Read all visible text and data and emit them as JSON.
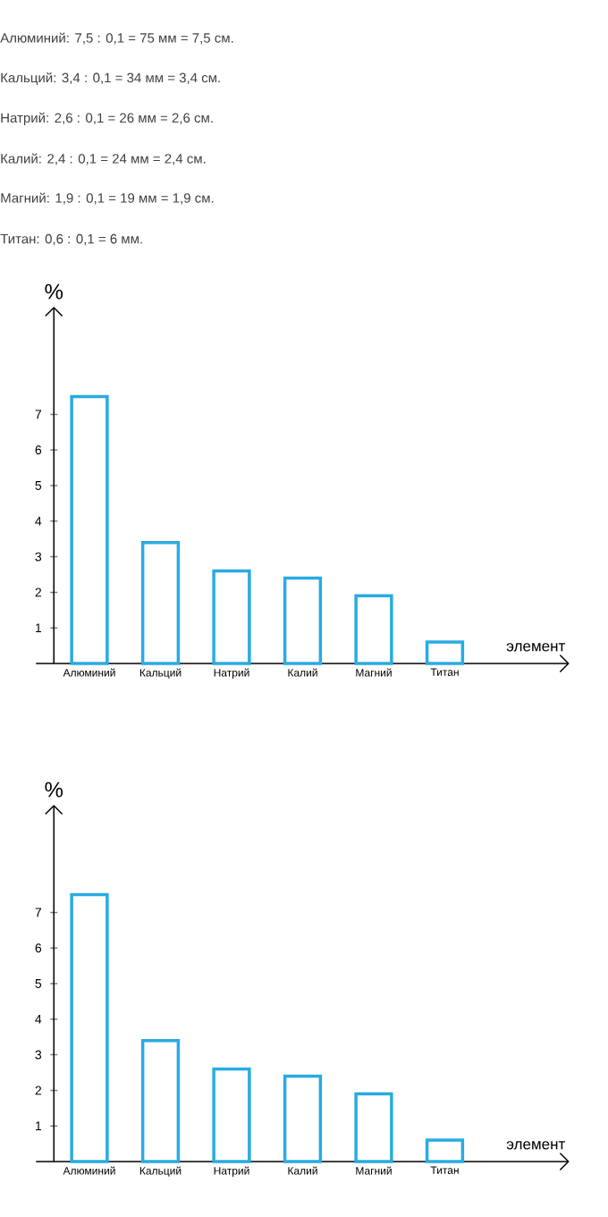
{
  "chart_data": [
    {
      "type": "bar",
      "annotations": [
        "Алюминий: 7,5 : 0,1 = 75 мм = 7,5 см.",
        "Кальций: 3,4 : 0,1 = 34 мм = 3,4 см.",
        "Натрий: 2,6 : 0,1 = 26 мм = 2,6 см.",
        "Калий: 2,4 : 0,1 = 24 мм = 2,4 см.",
        "Магний: 1,9 : 0,1 = 19 мм = 1,9 см.",
        "Титан: 0,6 : 0,1 = 6 мм."
      ],
      "categories": [
        "Алюминий",
        "Кальций",
        "Натрий",
        "Калий",
        "Магний",
        "Титан"
      ],
      "values": [
        7.5,
        3.4,
        2.6,
        2.4,
        1.9,
        0.6
      ],
      "color": "#29abe2",
      "ylabel": "%",
      "xlabel": "элемент",
      "ylim": [
        0,
        10
      ],
      "yticks": [
        1,
        2,
        3,
        4,
        5,
        6,
        7
      ],
      "grid": false
    },
    {
      "type": "bar",
      "categories": [
        "Алюминий",
        "Кальций",
        "Натрий",
        "Калий",
        "Магний",
        "Титан"
      ],
      "values": [
        7.5,
        3.4,
        2.6,
        2.4,
        1.9,
        0.6
      ],
      "color": "#29abe2",
      "ylabel": "%",
      "xlabel": "элемент",
      "ylim": [
        0,
        10
      ],
      "yticks": [
        1,
        2,
        3,
        4,
        5,
        6,
        7
      ],
      "grid": false
    }
  ]
}
